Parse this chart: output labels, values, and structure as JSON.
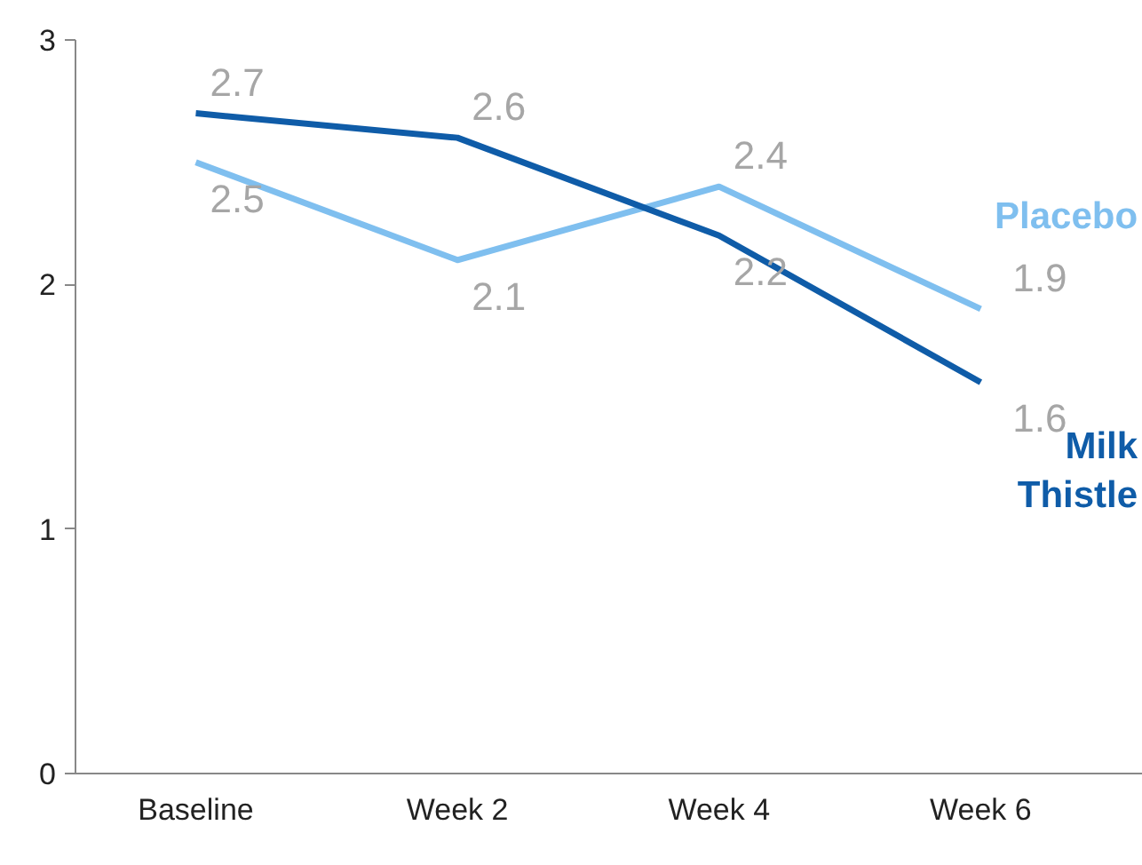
{
  "chart_data": {
    "type": "line",
    "categories": [
      "Baseline",
      "Week 2",
      "Week 4",
      "Week 6"
    ],
    "series": [
      {
        "name": "Placebo",
        "color": "#7fbfef",
        "values": [
          2.5,
          2.1,
          2.4,
          1.9
        ]
      },
      {
        "name": "Milk Thistle",
        "color": "#0f5ca8",
        "values": [
          2.7,
          2.6,
          2.2,
          1.6
        ]
      }
    ],
    "ylim": [
      0,
      3
    ],
    "yticks": [
      0,
      1,
      2,
      3
    ],
    "grid": false,
    "legend": false,
    "marker": "none",
    "line_style": "solid",
    "data_labels": true
  }
}
